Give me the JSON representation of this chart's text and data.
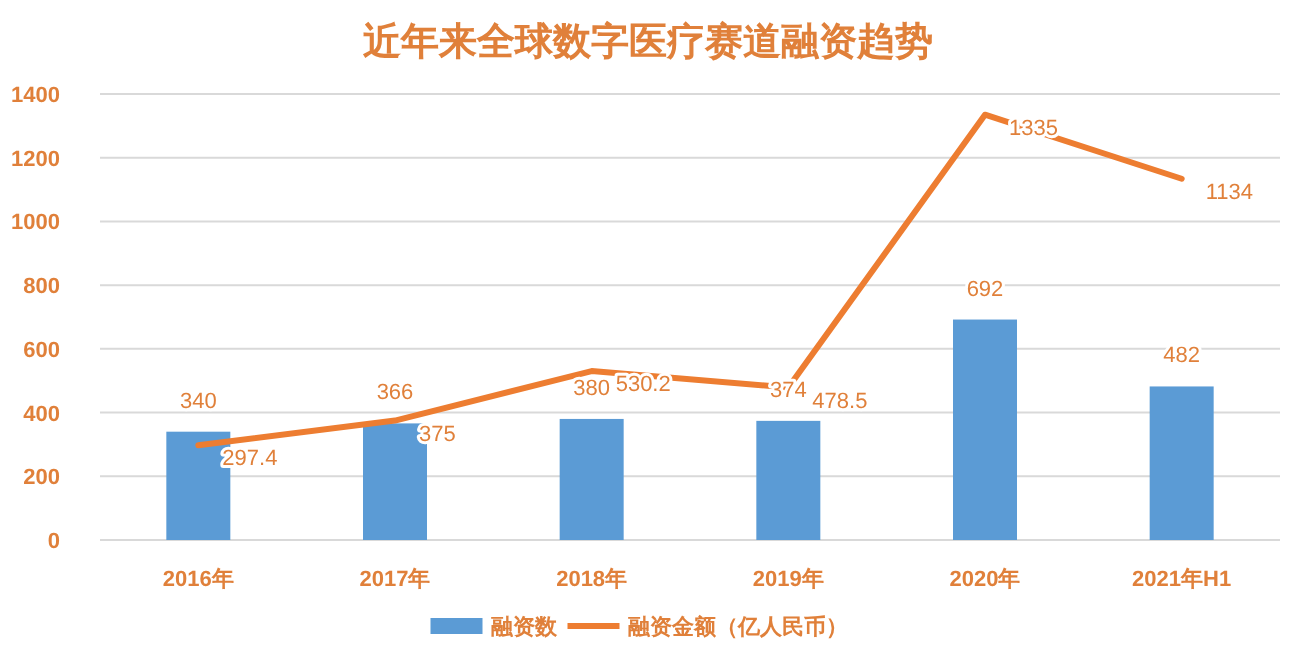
{
  "chart_data": {
    "type": "bar",
    "title": "近年来全球数字医疗赛道融资趋势",
    "categories": [
      "2016年",
      "2017年",
      "2018年",
      "2019年",
      "2020年",
      "2021年H1"
    ],
    "series": [
      {
        "name": "融资数",
        "color": "#5b9bd5",
        "values": [
          340,
          366,
          380,
          374,
          692,
          482
        ]
      },
      {
        "name": "融资金额（亿人民币）",
        "type": "line",
        "color": "#ed7d31",
        "values": [
          297.4,
          375,
          530.2,
          478.5,
          1335,
          1134
        ]
      }
    ],
    "ylim": [
      0,
      1400
    ],
    "yticks": [
      0,
      200,
      400,
      600,
      800,
      1000,
      1200,
      1400
    ],
    "grid": "y",
    "legend": "bottom",
    "data_labels": true,
    "marker": "none",
    "line_style": "solid"
  }
}
